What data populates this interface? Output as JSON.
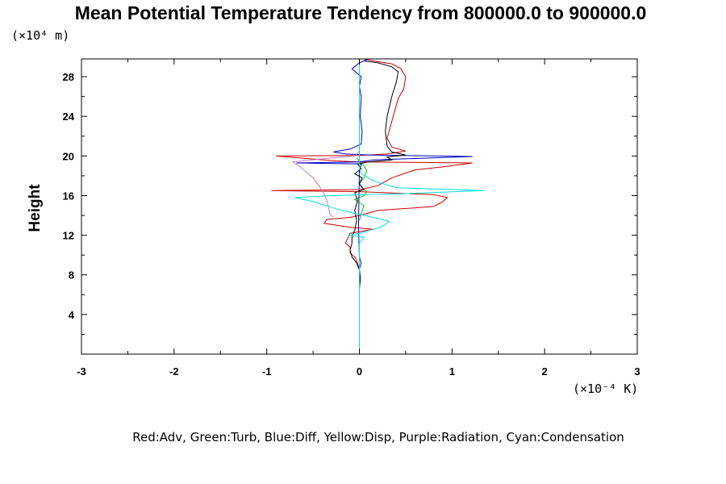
{
  "chart_data": {
    "type": "line",
    "title": "Mean Potential Temperature Tendency from 800000.0 to 900000.0",
    "ylabel": "Height",
    "y_scale_label": "(×10⁴ m)",
    "x_scale_label": "(×10⁻⁴ K)",
    "legend_text": "Red:Adv, Green:Turb, Blue:Diff, Yellow:Disp, Purple:Radiation, Cyan:Condensation",
    "xlim": [
      -3,
      3
    ],
    "ylim": [
      0,
      29.8
    ],
    "x_ticks": [
      -3,
      -2,
      -1,
      0,
      1,
      2,
      3
    ],
    "x_tick_labels": [
      "-3",
      "-2",
      "-1",
      "0",
      "1",
      "2",
      "3"
    ],
    "y_ticks": [
      4,
      8,
      12,
      16,
      20,
      24,
      28
    ],
    "y_tick_labels": [
      "4",
      "8",
      "12",
      "16",
      "20",
      "24",
      "28"
    ],
    "grid": false,
    "series": [
      {
        "name": "Adv",
        "color": "#cc0000",
        "points": [
          [
            0,
            6.5
          ],
          [
            0.01,
            7.5
          ],
          [
            0,
            8.5
          ],
          [
            -0.02,
            9.2
          ],
          [
            -0.05,
            9.8
          ],
          [
            -0.1,
            10.2
          ],
          [
            -0.1,
            10.8
          ],
          [
            -0.15,
            11.2
          ],
          [
            -0.12,
            11.8
          ],
          [
            -0.1,
            12.2
          ],
          [
            0.15,
            12.6
          ],
          [
            -0.1,
            12.8
          ],
          [
            -0.38,
            13.2
          ],
          [
            -0.35,
            13.6
          ],
          [
            -0.1,
            13.8
          ],
          [
            0,
            14.0
          ],
          [
            0.2,
            14.5
          ],
          [
            0.8,
            14.9
          ],
          [
            0.9,
            15.4
          ],
          [
            0.95,
            15.8
          ],
          [
            0.8,
            16.1
          ],
          [
            0,
            16.4
          ],
          [
            -0.95,
            16.5
          ],
          [
            0,
            16.6
          ],
          [
            0.2,
            17.0
          ],
          [
            0.35,
            17.8
          ],
          [
            0.6,
            18.6
          ],
          [
            0.9,
            18.9
          ],
          [
            1.22,
            19.3
          ],
          [
            0,
            19.4
          ],
          [
            -0.25,
            19.5
          ],
          [
            -0.9,
            20.0
          ],
          [
            0,
            20.05
          ],
          [
            0.3,
            20.2
          ],
          [
            0.5,
            20.5
          ],
          [
            0.35,
            20.9
          ],
          [
            0.3,
            21.8
          ],
          [
            0.33,
            22.8
          ],
          [
            0.38,
            24.5
          ],
          [
            0.42,
            25.8
          ],
          [
            0.48,
            26.8
          ],
          [
            0.5,
            28.0
          ],
          [
            0.45,
            28.8
          ],
          [
            0.35,
            29.3
          ],
          [
            0.15,
            29.6
          ],
          [
            0.05,
            29.8
          ]
        ]
      },
      {
        "name": "Turb",
        "color": "#00cc00",
        "points": [
          [
            0,
            13.5
          ],
          [
            0.02,
            14.2
          ],
          [
            0.05,
            15.0
          ],
          [
            -0.05,
            15.6
          ],
          [
            0.05,
            16.0
          ],
          [
            0.08,
            16.4
          ],
          [
            0.03,
            16.8
          ],
          [
            0,
            17.2
          ],
          [
            0.05,
            17.8
          ],
          [
            0.08,
            18.5
          ],
          [
            0.05,
            19.0
          ],
          [
            0,
            19.4
          ],
          [
            -0.02,
            19.8
          ]
        ]
      },
      {
        "name": "Diff",
        "color": "#0000cc",
        "points": [
          [
            0,
            8.6
          ],
          [
            0.02,
            9.2
          ],
          [
            0,
            9.8
          ],
          [
            -0.01,
            13
          ],
          [
            0,
            18.5
          ],
          [
            0.02,
            19.2
          ],
          [
            -0.68,
            19.3
          ],
          [
            0,
            19.4
          ],
          [
            0.15,
            19.6
          ],
          [
            1.22,
            19.95
          ],
          [
            0.1,
            20.1
          ],
          [
            -0.15,
            20.2
          ],
          [
            -0.28,
            20.4
          ],
          [
            -0.1,
            20.7
          ],
          [
            0.02,
            21.2
          ],
          [
            0.03,
            22.5
          ],
          [
            0.01,
            24
          ],
          [
            0.02,
            26
          ],
          [
            0.0,
            27
          ],
          [
            0.02,
            28
          ],
          [
            -0.08,
            28.8
          ],
          [
            0.0,
            29.4
          ],
          [
            0.1,
            29.8
          ]
        ]
      },
      {
        "name": "Black",
        "color": "#000000",
        "points": [
          [
            0,
            6.8
          ],
          [
            0.01,
            7.8
          ],
          [
            0,
            8.5
          ],
          [
            -0.03,
            9.2
          ],
          [
            -0.08,
            9.8
          ],
          [
            -0.1,
            10.5
          ],
          [
            -0.08,
            11.2
          ],
          [
            -0.08,
            11.8
          ],
          [
            -0.05,
            12.5
          ],
          [
            -0.03,
            13.5
          ],
          [
            -0.05,
            14.5
          ],
          [
            -0.02,
            15.5
          ],
          [
            -0.05,
            16.3
          ],
          [
            0.05,
            16.6
          ],
          [
            0,
            17.2
          ],
          [
            0.03,
            17.8
          ],
          [
            -0.05,
            18.2
          ],
          [
            0.02,
            18.7
          ],
          [
            -0.02,
            19.2
          ],
          [
            0.1,
            19.4
          ],
          [
            0.35,
            19.6
          ],
          [
            0.3,
            19.9
          ],
          [
            0.5,
            20.1
          ],
          [
            0.35,
            20.4
          ],
          [
            0.3,
            21
          ],
          [
            0.28,
            22.5
          ],
          [
            0.3,
            24
          ],
          [
            0.35,
            26
          ],
          [
            0.4,
            27.5
          ],
          [
            0.42,
            28.5
          ],
          [
            0.35,
            29
          ],
          [
            0.2,
            29.4
          ],
          [
            0.05,
            29.6
          ]
        ]
      },
      {
        "name": "Radiation",
        "color": "#c080c0",
        "points": [
          [
            -0.28,
            13.8
          ],
          [
            -0.32,
            14.2
          ],
          [
            -0.35,
            15.5
          ],
          [
            -0.4,
            16.5
          ],
          [
            -0.5,
            17.8
          ],
          [
            -0.65,
            19.0
          ],
          [
            -0.72,
            19.4
          ],
          [
            -0.3,
            19.8
          ],
          [
            -0.05,
            20.0
          ],
          [
            0,
            20.5
          ]
        ]
      },
      {
        "name": "Condensation",
        "color": "#00e0e0",
        "points": [
          [
            0,
            0.2
          ],
          [
            0,
            8
          ],
          [
            0,
            11.2
          ],
          [
            0.05,
            11.8
          ],
          [
            -0.12,
            12.0
          ],
          [
            0,
            12.2
          ],
          [
            0.25,
            12.9
          ],
          [
            0.32,
            13.4
          ],
          [
            0.15,
            13.8
          ],
          [
            -0.1,
            14.3
          ],
          [
            -0.3,
            14.8
          ],
          [
            -0.5,
            15.4
          ],
          [
            -0.7,
            15.8
          ],
          [
            -0.3,
            16.0
          ],
          [
            0.5,
            16.2
          ],
          [
            1.35,
            16.5
          ],
          [
            0.4,
            16.8
          ],
          [
            0.15,
            17.5
          ],
          [
            0.02,
            18.2
          ],
          [
            0,
            19
          ],
          [
            0,
            29.8
          ]
        ]
      }
    ]
  }
}
